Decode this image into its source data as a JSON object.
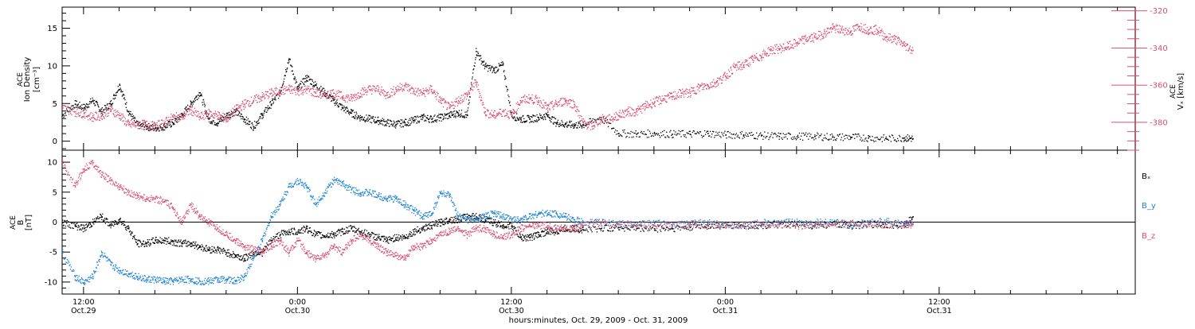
{
  "chart_data": {
    "type": "scatter",
    "title": "",
    "xlabel": "hours:minutes, Oct. 29, 2009 - Oct. 31, 2009",
    "x_units": "hours since Oct. 29, 2009 00:00 UT",
    "xlim": [
      10.8,
      71.0
    ],
    "x_ticks": [
      {
        "x": 12,
        "time": "12:00",
        "date": "Oct.29"
      },
      {
        "x": 24,
        "time": "0:00",
        "date": "Oct.30"
      },
      {
        "x": 36,
        "time": "12:00",
        "date": "Oct.30"
      },
      {
        "x": 48,
        "time": "0:00",
        "date": "Oct.31"
      },
      {
        "x": 60,
        "time": "12:00",
        "date": "Oct.31"
      }
    ],
    "panels": [
      {
        "id": "density-speed",
        "ylabel_left": [
          "ACE",
          "Ion Density",
          "[cm⁻³]"
        ],
        "ylim_left": [
          -1.2,
          17.8
        ],
        "yticks_left": [
          0,
          5,
          10,
          15
        ],
        "ylabel_right": [
          "ACE",
          "Vₓ [km/s]"
        ],
        "ylim_right": [
          -395,
          -318
        ],
        "yticks_right": [
          -320,
          -340,
          -360,
          -380
        ],
        "right_axis_color": "#d94f70",
        "series": [
          {
            "name": "Ion Density",
            "axis": "left",
            "color": "#000000",
            "x": [
              10.8,
              11.5,
              12.0,
              12.5,
              13.0,
              13.5,
              14.0,
              14.5,
              15.0,
              15.5,
              16.0,
              16.5,
              17.0,
              17.5,
              18.0,
              18.5,
              19.0,
              19.5,
              20.0,
              20.5,
              21.0,
              21.5,
              22.0,
              22.5,
              23.0,
              23.5,
              24.0,
              24.5,
              25.0,
              25.5,
              26.0,
              26.5,
              27.0,
              27.5,
              28.0,
              28.5,
              29.0,
              29.5,
              30.0,
              30.5,
              31.0,
              31.5,
              32.0,
              32.5,
              33.0,
              33.5,
              34.0,
              34.5,
              35.0,
              35.5,
              36.0,
              36.5,
              37.0,
              37.5,
              38.0,
              38.5,
              39.0,
              39.5,
              40.0,
              41.0,
              42.0,
              43.0,
              44.0,
              45.0,
              46.0,
              47.0,
              48.0,
              49.0,
              50.0,
              51.0,
              52.0,
              53.0,
              54.0,
              55.0,
              56.0,
              57.0,
              58.0,
              58.5
            ],
            "y": [
              3.5,
              5,
              4.5,
              5.5,
              4,
              5,
              7.5,
              4,
              2.2,
              2,
              1.8,
              2,
              2.5,
              3.5,
              5,
              6.5,
              3,
              2.5,
              3.5,
              4,
              3,
              2,
              3.5,
              5,
              6.5,
              11,
              7,
              8.5,
              7.5,
              6.5,
              5.5,
              4.5,
              3.8,
              3.2,
              3,
              2.8,
              2.5,
              2.3,
              2.5,
              2.8,
              3.2,
              3,
              3.2,
              3.5,
              3.8,
              3.5,
              12,
              10,
              9.5,
              10.2,
              3.5,
              3,
              3,
              3.2,
              3.5,
              2.5,
              2.3,
              2.2,
              2.2,
              3.2,
              1.1,
              1,
              1.1,
              1,
              1,
              1.1,
              0.9,
              0.9,
              0.8,
              0.7,
              0.7,
              0.7,
              0.6,
              0.6,
              0.5,
              0.4,
              0.5,
              0.4
            ]
          },
          {
            "name": "Vx",
            "axis": "right",
            "color": "#d94f70",
            "x": [
              10.8,
              11.5,
              12.0,
              12.5,
              13.0,
              13.5,
              14.0,
              14.5,
              15.0,
              15.5,
              16.0,
              16.5,
              17.0,
              17.5,
              18.0,
              18.5,
              19.0,
              19.5,
              20.0,
              20.5,
              21.0,
              21.5,
              22.0,
              22.5,
              23.0,
              23.5,
              24.0,
              24.5,
              25.0,
              25.5,
              26.0,
              26.5,
              27.0,
              27.5,
              28.0,
              28.5,
              29.0,
              29.5,
              30.0,
              30.5,
              31.0,
              31.5,
              32.0,
              32.5,
              33.0,
              33.5,
              34.0,
              34.5,
              35.0,
              35.5,
              36.0,
              36.5,
              37.0,
              37.5,
              38.0,
              38.5,
              39.0,
              39.5,
              40.0,
              40.5,
              41.0,
              41.5,
              42.0,
              42.5,
              43.0,
              43.5,
              44.0,
              44.5,
              45.0,
              45.5,
              46.0,
              46.5,
              47.0,
              47.5,
              48.0,
              48.5,
              49.0,
              49.5,
              50.0,
              50.5,
              51.0,
              51.5,
              52.0,
              52.5,
              53.0,
              53.5,
              54.0,
              54.5,
              55.0,
              55.5,
              56.0,
              56.5,
              57.0,
              57.5,
              58.0,
              58.5
            ],
            "y": [
              -372,
              -374,
              -375,
              -377,
              -376,
              -373,
              -376,
              -381,
              -381,
              -381,
              -382,
              -380,
              -377,
              -377,
              -373,
              -377,
              -375,
              -376,
              -378,
              -373,
              -370,
              -368,
              -366,
              -364,
              -363,
              -362,
              -363,
              -362,
              -364,
              -365,
              -364,
              -366,
              -367,
              -364,
              -362,
              -362,
              -365,
              -362,
              -360,
              -363,
              -364,
              -362,
              -368,
              -372,
              -368,
              -365,
              -358,
              -374,
              -376,
              -374,
              -376,
              -368,
              -367,
              -368,
              -372,
              -370,
              -368,
              -370,
              -380,
              -382,
              -378,
              -378,
              -376,
              -374,
              -374,
              -371,
              -369,
              -367,
              -366,
              -364,
              -364,
              -361,
              -360,
              -358,
              -355,
              -350,
              -349,
              -346,
              -344,
              -341,
              -340,
              -339,
              -337,
              -335,
              -334,
              -332,
              -329,
              -330,
              -331,
              -328,
              -330,
              -330,
              -334,
              -335,
              -338,
              -341
            ]
          }
        ]
      },
      {
        "id": "magnetic-field",
        "ylabel_left": [
          "ACE",
          "B",
          "[nT]"
        ],
        "ylim_left": [
          -12,
          12
        ],
        "yticks_left": [
          10,
          5,
          0,
          -5,
          -10
        ],
        "zero_line": true,
        "series": [
          {
            "name": "Bₓ",
            "axis": "left",
            "color": "#000000",
            "x": [
              10.8,
              11.5,
              12.0,
              12.5,
              13.0,
              13.5,
              14.0,
              14.5,
              15.0,
              15.5,
              16.0,
              16.5,
              17.0,
              17.5,
              18.0,
              18.5,
              19.0,
              19.5,
              20.0,
              20.5,
              21.0,
              21.5,
              22.0,
              22.5,
              23.0,
              23.5,
              24.0,
              24.5,
              25.0,
              25.5,
              26.0,
              26.5,
              27.0,
              27.5,
              28.0,
              28.5,
              29.0,
              29.5,
              30.0,
              30.5,
              31.0,
              31.5,
              32.0,
              32.5,
              33.0,
              33.5,
              34.0,
              34.5,
              35.0,
              35.5,
              36.0,
              36.5,
              37.0,
              37.5,
              38.0,
              38.5,
              39.0,
              39.5,
              40.0,
              41.0,
              42.0,
              43.0,
              44.0,
              45.0,
              46.0,
              47.0,
              48.0,
              49.0,
              50.0,
              51.0,
              52.0,
              53.0,
              54.0,
              55.0,
              56.0,
              57.0,
              58.0,
              58.5
            ],
            "y": [
              0,
              -0.5,
              -1,
              0,
              1,
              -0.5,
              0.5,
              -1,
              -3.5,
              -3.5,
              -3,
              -3,
              -3.2,
              -3.5,
              -3.5,
              -4,
              -4.5,
              -4.5,
              -5,
              -5.5,
              -6,
              -5,
              -5,
              -3,
              -2,
              -1.5,
              -1.5,
              -1,
              -2,
              -2.2,
              -2,
              -1.5,
              -1,
              -1.5,
              -2,
              -2.5,
              -3,
              -2.5,
              -2.5,
              -1.5,
              -1,
              -0.5,
              0,
              0.5,
              0.5,
              1,
              1,
              0.5,
              0,
              -0.5,
              -0.5,
              -2.5,
              -2.5,
              -2,
              -1.5,
              -1.5,
              -1,
              -1,
              -1.2,
              -1,
              -0.8,
              -1,
              -1,
              -1,
              -0.8,
              -0.5,
              -0.5,
              -0.5,
              -0.5,
              -0.3,
              -0.3,
              -0.5,
              -0.3,
              -0.5,
              -0.3,
              -0.3,
              -0.5,
              1
            ]
          },
          {
            "name": "B_y",
            "axis": "left",
            "color": "#1f82d6",
            "x": [
              10.8,
              11.5,
              12.0,
              12.5,
              13.0,
              13.5,
              14.0,
              14.5,
              15.0,
              15.5,
              16.0,
              16.5,
              17.0,
              17.5,
              18.0,
              18.5,
              19.0,
              19.5,
              20.0,
              20.5,
              21.0,
              21.5,
              22.0,
              22.5,
              23.0,
              23.5,
              24.0,
              24.5,
              25.0,
              25.5,
              26.0,
              26.5,
              27.0,
              27.5,
              28.0,
              28.5,
              29.0,
              29.5,
              30.0,
              30.5,
              31.0,
              31.5,
              32.0,
              32.5,
              33.0,
              33.5,
              34.0,
              34.5,
              35.0,
              35.5,
              36.0,
              36.5,
              37.0,
              37.5,
              38.0,
              38.5,
              39.0,
              39.5,
              40.0,
              41.0,
              42.0,
              43.0,
              44.0,
              45.0,
              46.0,
              47.0,
              48.0,
              49.0,
              50.0,
              51.0,
              52.0,
              53.0,
              54.0,
              55.0,
              56.0,
              57.0,
              58.0,
              58.5
            ],
            "y": [
              -5,
              -9,
              -10,
              -9,
              -5,
              -7,
              -8,
              -8.5,
              -9,
              -9.5,
              -9.5,
              -9.8,
              -9.8,
              -9.5,
              -9.5,
              -9.8,
              -9.8,
              -9.5,
              -9.5,
              -9.8,
              -9,
              -6,
              -3,
              1,
              3,
              6,
              7,
              6,
              3,
              5,
              7,
              6.5,
              5.5,
              5,
              5,
              4.5,
              4,
              4,
              3,
              2,
              1,
              1.5,
              5,
              4.5,
              1,
              0.5,
              0.5,
              1,
              1.5,
              1,
              0.5,
              0.5,
              1,
              1.5,
              1.5,
              1.5,
              1,
              0.5,
              0,
              0,
              -0.2,
              -0.3,
              0,
              -0.5,
              -0.2,
              0,
              -0.5,
              -0.5,
              0,
              -0.2,
              0.2,
              0,
              0,
              -0.3,
              0,
              0.2,
              -0.3,
              0
            ]
          },
          {
            "name": "B_z",
            "axis": "left",
            "color": "#d94f70",
            "x": [
              10.8,
              11.5,
              12.0,
              12.5,
              13.0,
              13.5,
              14.0,
              14.5,
              15.0,
              15.5,
              16.0,
              16.5,
              17.0,
              17.5,
              18.0,
              18.5,
              19.0,
              19.5,
              20.0,
              20.5,
              21.0,
              21.5,
              22.0,
              22.5,
              23.0,
              23.5,
              24.0,
              24.5,
              25.0,
              25.5,
              26.0,
              26.5,
              27.0,
              27.5,
              28.0,
              28.5,
              29.0,
              29.5,
              30.0,
              30.5,
              31.0,
              31.5,
              32.0,
              32.5,
              33.0,
              33.5,
              34.0,
              34.5,
              35.0,
              35.5,
              36.0,
              36.5,
              37.0,
              37.5,
              38.0,
              38.5,
              39.0,
              39.5,
              40.0,
              41.0,
              42.0,
              43.0,
              44.0,
              45.0,
              46.0,
              47.0,
              48.0,
              49.0,
              50.0,
              51.0,
              52.0,
              53.0,
              54.0,
              55.0,
              56.0,
              57.0,
              58.0,
              58.5
            ],
            "y": [
              10,
              6,
              9,
              10,
              8,
              7,
              6,
              5,
              4.5,
              4,
              4,
              3.5,
              2.5,
              0,
              3,
              1,
              0,
              -1,
              -2,
              -3,
              -4,
              -4.5,
              -5,
              -4,
              -3,
              -5,
              -3,
              -5,
              -6,
              -5.5,
              -4,
              -5,
              -3,
              -2,
              -3,
              -4,
              -5,
              -5.5,
              -6,
              -4,
              -4,
              -3,
              -2,
              -1.5,
              -1,
              -2,
              -1,
              -1,
              -2,
              -2.5,
              -2,
              -1,
              -0.5,
              -0.5,
              -0.5,
              -1,
              -1,
              -1,
              -0.5,
              0,
              -0.3,
              -0.5,
              -0.5,
              -0.5,
              -0.3,
              -0.3,
              -0.5,
              -0.5,
              -0.3,
              -0.3,
              -0.5,
              -0.3,
              -0.3,
              -0.2,
              -0.3,
              -0.3,
              -0.5,
              -0.3
            ]
          }
        ]
      }
    ]
  }
}
